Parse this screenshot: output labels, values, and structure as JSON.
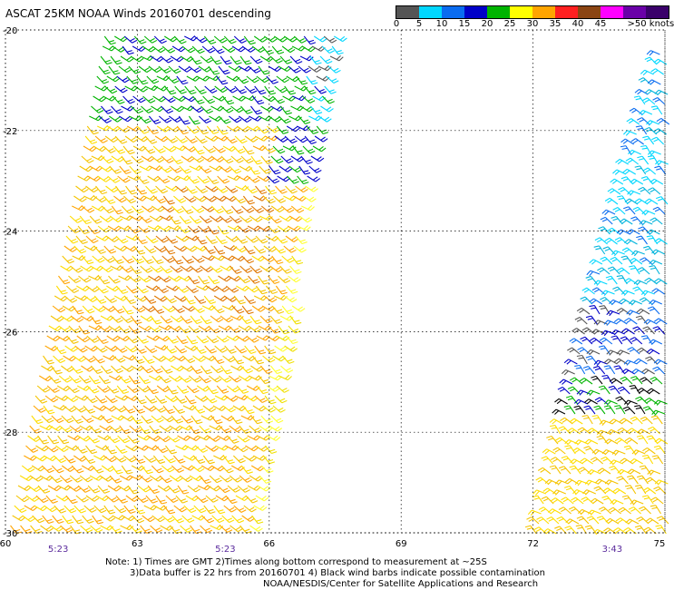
{
  "title": "ASCAT 25KM NOAA Winds 20160701 descending",
  "legend": {
    "labels": [
      "0",
      "5",
      "10",
      "15",
      "20",
      "25",
      "30",
      "35",
      "40",
      "45",
      ">50 knots"
    ],
    "colors": [
      "#555555",
      "#00d7ff",
      "#0a6cf0",
      "#0000c8",
      "#00b400",
      "#ffff00",
      "#ffa500",
      "#ff2020",
      "#8b4513",
      "#ff00ff",
      "#6a00a8",
      "#3a006a"
    ]
  },
  "axes": {
    "lat_ticks": [
      "-20",
      "-22",
      "-24",
      "-26",
      "-28",
      "-30"
    ],
    "lon_ticks": [
      "60",
      "63",
      "66",
      "69",
      "72",
      "75"
    ]
  },
  "pass_times": [
    "5:23",
    "5:23",
    "3:43"
  ],
  "notes": {
    "line1": "Note: 1) Times are GMT 2)Times along bottom correspond to measurement at ~25S",
    "line2": "3)Data buffer is 22 hrs from 20160701 4) Black wind barbs indicate possible contamination",
    "line3": "NOAA/NESDIS/Center for Satellite Applications and Research"
  },
  "chart_data": {
    "type": "map",
    "projection": "lon-lat",
    "xlim": [
      60,
      75
    ],
    "ylim": [
      -30,
      -20
    ],
    "grid": true,
    "swaths": [
      {
        "name": "",
        "lon_range_at_-20": [
          62.2,
          67.6
        ],
        "lon_range_at_-30": [
          60.0,
          65.8
        ],
        "time": "5:23"
      },
      {
        "name": "",
        "lon_range_at_-20": [
          75.0,
          75.0
        ],
        "lon_range_at_-30": [
          72.0,
          75.0
        ],
        "time": "3:43"
      }
    ]
  }
}
